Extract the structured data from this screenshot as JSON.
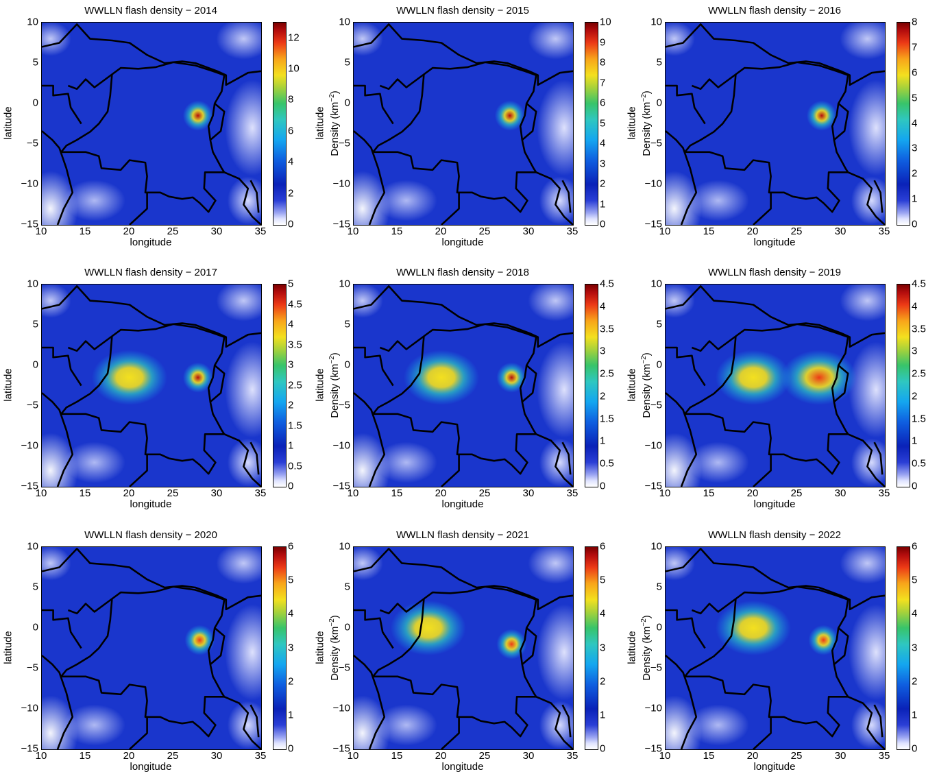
{
  "figure": {
    "xlabel": "longitude",
    "ylabel": "latitude",
    "colorbar_label": "Density (km",
    "colorbar_label_exp": "−2",
    "colorbar_label_close": ")",
    "x_ticks": [
      "10",
      "15",
      "20",
      "25",
      "30",
      "35"
    ],
    "y_ticks": [
      "10",
      "5",
      "0",
      "−5",
      "−10",
      "−15"
    ]
  },
  "chart_data": [
    {
      "type": "heatmap",
      "title": "WWLLN flash density − 2014",
      "xlabel": "longitude",
      "ylabel": "latitude",
      "xlim": [
        10,
        35
      ],
      "ylim": [
        -15,
        10
      ],
      "colorbar_ticks": [
        "12",
        "10",
        "8",
        "6",
        "4",
        "2",
        "0"
      ],
      "clim": [
        0,
        13
      ],
      "hotspots": [
        {
          "lon": 27.8,
          "lat": -1.5,
          "value": 12
        }
      ]
    },
    {
      "type": "heatmap",
      "title": "WWLLN flash density − 2015",
      "xlabel": "longitude",
      "ylabel": "latitude",
      "xlim": [
        10,
        35
      ],
      "ylim": [
        -15,
        10
      ],
      "colorbar_ticks": [
        "10",
        "9",
        "8",
        "7",
        "6",
        "5",
        "4",
        "3",
        "2",
        "1",
        "0"
      ],
      "clim": [
        0,
        10
      ],
      "hotspots": [
        {
          "lon": 27.8,
          "lat": -1.5,
          "value": 9
        }
      ]
    },
    {
      "type": "heatmap",
      "title": "WWLLN flash density − 2016",
      "xlabel": "longitude",
      "ylabel": "latitude",
      "xlim": [
        10,
        35
      ],
      "ylim": [
        -15,
        10
      ],
      "colorbar_ticks": [
        "8",
        "7",
        "6",
        "5",
        "4",
        "3",
        "2",
        "1",
        "0"
      ],
      "clim": [
        0,
        8
      ],
      "hotspots": [
        {
          "lon": 27.8,
          "lat": -1.5,
          "value": 7
        }
      ]
    },
    {
      "type": "heatmap",
      "title": "WWLLN flash density − 2017",
      "xlabel": "longitude",
      "ylabel": "latitude",
      "xlim": [
        10,
        35
      ],
      "ylim": [
        -15,
        10
      ],
      "colorbar_ticks": [
        "5",
        "4.5",
        "4",
        "3.5",
        "3",
        "2.5",
        "2",
        "1.5",
        "1",
        "0.5",
        "0"
      ],
      "clim": [
        0,
        5
      ],
      "hotspots": [
        {
          "lon": 27.8,
          "lat": -1.5,
          "value": 4.5
        },
        {
          "lon": 20,
          "lat": -1.5,
          "value": 3.2
        }
      ]
    },
    {
      "type": "heatmap",
      "title": "WWLLN flash density − 2018",
      "xlabel": "longitude",
      "ylabel": "latitude",
      "xlim": [
        10,
        35
      ],
      "ylim": [
        -15,
        10
      ],
      "colorbar_ticks": [
        "4.5",
        "4",
        "3.5",
        "3",
        "2.5",
        "2",
        "1.5",
        "1",
        "0.5",
        "0"
      ],
      "clim": [
        0,
        4.5
      ],
      "hotspots": [
        {
          "lon": 28,
          "lat": -1.5,
          "value": 4
        },
        {
          "lon": 20,
          "lat": -1.5,
          "value": 3
        }
      ]
    },
    {
      "type": "heatmap",
      "title": "WWLLN flash density − 2019",
      "xlabel": "longitude",
      "ylabel": "latitude",
      "xlim": [
        10,
        35
      ],
      "ylim": [
        -15,
        10
      ],
      "colorbar_ticks": [
        "4.5",
        "4",
        "3.5",
        "3",
        "2.5",
        "2",
        "1.5",
        "1",
        "0.5",
        "0"
      ],
      "clim": [
        0,
        4.5
      ],
      "hotspots": [
        {
          "lon": 27.5,
          "lat": -1.5,
          "value": 3.2
        },
        {
          "lon": 20,
          "lat": -1.5,
          "value": 3
        }
      ]
    },
    {
      "type": "heatmap",
      "title": "WWLLN flash density − 2020",
      "xlabel": "longitude",
      "ylabel": "latitude",
      "xlim": [
        10,
        35
      ],
      "ylim": [
        -15,
        10
      ],
      "colorbar_ticks": [
        "6",
        "5",
        "4",
        "3",
        "2",
        "1",
        "0"
      ],
      "clim": [
        0,
        6
      ],
      "hotspots": [
        {
          "lon": 28,
          "lat": -1.5,
          "value": 5
        }
      ]
    },
    {
      "type": "heatmap",
      "title": "WWLLN flash density − 2021",
      "xlabel": "longitude",
      "ylabel": "latitude",
      "xlim": [
        10,
        35
      ],
      "ylim": [
        -15,
        10
      ],
      "colorbar_ticks": [
        "6",
        "5",
        "4",
        "3",
        "2",
        "1",
        "0"
      ],
      "clim": [
        0,
        6
      ],
      "hotspots": [
        {
          "lon": 28,
          "lat": -2,
          "value": 5
        },
        {
          "lon": 18.5,
          "lat": 0,
          "value": 4
        }
      ]
    },
    {
      "type": "heatmap",
      "title": "WWLLN flash density − 2022",
      "xlabel": "longitude",
      "ylabel": "latitude",
      "xlim": [
        10,
        35
      ],
      "ylim": [
        -15,
        10
      ],
      "colorbar_ticks": [
        "6",
        "5",
        "4",
        "3",
        "2",
        "1",
        "0"
      ],
      "clim": [
        0,
        6
      ],
      "hotspots": [
        {
          "lon": 28,
          "lat": -1.5,
          "value": 5
        },
        {
          "lon": 20,
          "lat": 0,
          "value": 4
        }
      ]
    }
  ]
}
